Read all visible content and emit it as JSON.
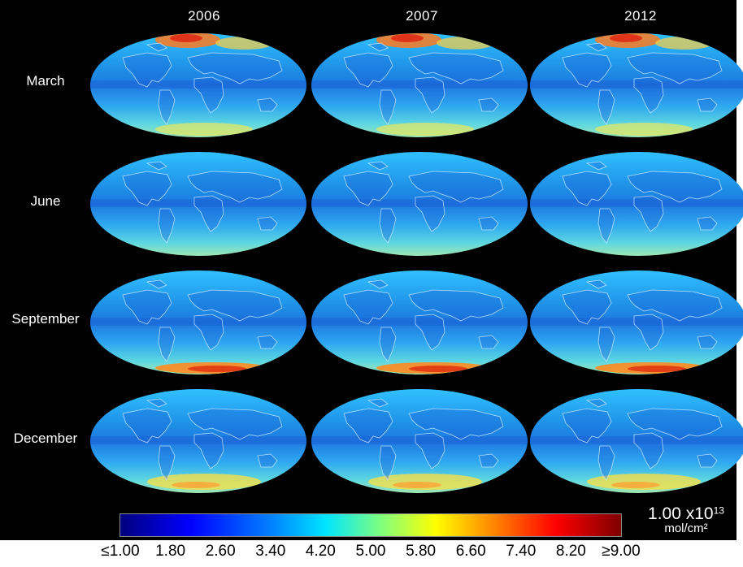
{
  "columns": [
    "2006",
    "2007",
    "2012"
  ],
  "rows": [
    "March",
    "June",
    "September",
    "December"
  ],
  "colorbar": {
    "ticks": [
      "≤1.00",
      "1.80",
      "2.60",
      "3.40",
      "4.20",
      "5.00",
      "5.80",
      "6.60",
      "7.40",
      "8.20",
      "≥9.00"
    ],
    "range": [
      1.0,
      9.0
    ],
    "colormap": "jet",
    "colors": [
      "#00007f",
      "#0000ff",
      "#0080ff",
      "#00e5ff",
      "#7fff7f",
      "#ffff00",
      "#ff8000",
      "#ff0000",
      "#7f0000"
    ],
    "unit_value": "1.00 x10",
    "unit_exponent": "13",
    "unit_label": "mol/cm²"
  },
  "maps": {
    "projection": "Mollweide",
    "background": "#000000"
  }
}
